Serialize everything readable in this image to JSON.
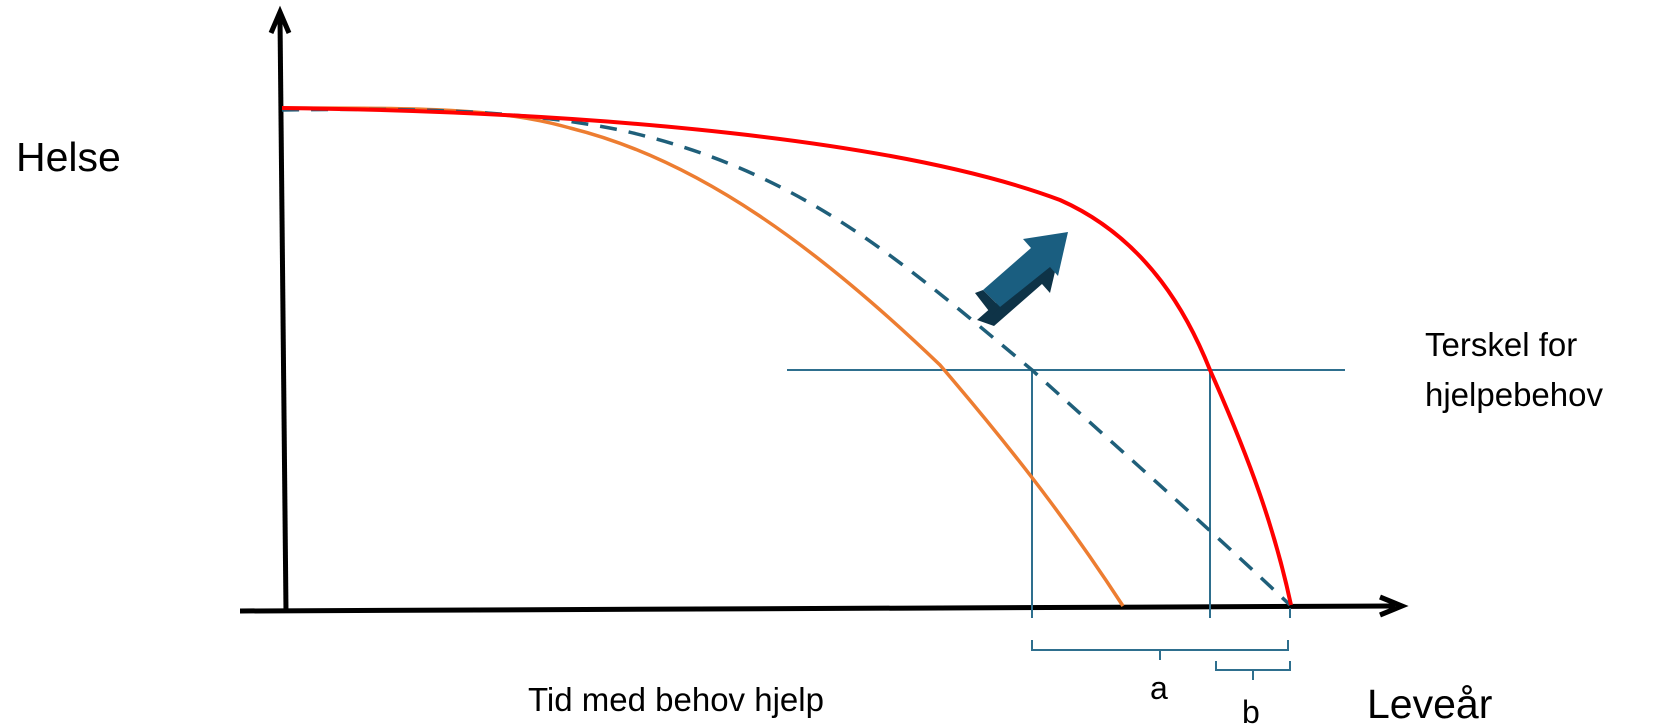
{
  "labels": {
    "y_axis": "Helse",
    "x_axis": "Leveår",
    "threshold_line1": "Terskel for",
    "threshold_line2": "hjelpebehov",
    "time_with_help": "Tid med behov hjelp",
    "bracket_a": "a",
    "bracket_b": "b"
  },
  "colors": {
    "axis": "#000000",
    "red_curve": "#ff0000",
    "orange_curve": "#ed7d31",
    "dashed_curve": "#1f5f7a",
    "threshold": "#2e6f8e",
    "arrow_fill": "#1a5e80",
    "arrow_shadow": "#0e3347"
  },
  "icons": {
    "shift_arrow": "arrow-up-right-icon"
  }
}
